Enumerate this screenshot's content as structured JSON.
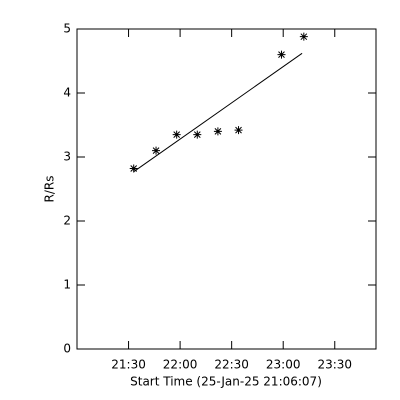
{
  "chart_data": {
    "type": "scatter",
    "x_label": "Start Time (25-Jan-25 21:06:07)",
    "y_label": "R/Rs",
    "x": [
      1293,
      1306,
      1318,
      1330,
      1342,
      1354,
      1379,
      1392
    ],
    "values": [
      2.82,
      3.1,
      3.35,
      3.35,
      3.4,
      3.42,
      4.6,
      4.88
    ],
    "fit": {
      "x": [
        1293,
        1391
      ],
      "values": [
        2.77,
        4.62
      ]
    },
    "color": "#000000",
    "xlim": [
      1260,
      1434
    ],
    "xticks": [
      {
        "value": 1290,
        "label": "21:30"
      },
      {
        "value": 1320,
        "label": "22:00"
      },
      {
        "value": 1350,
        "label": "22:30"
      },
      {
        "value": 1380,
        "label": "23:00"
      },
      {
        "value": 1410,
        "label": "23:30"
      }
    ],
    "ylim": [
      0,
      5
    ],
    "yticks": [
      0,
      1,
      2,
      3,
      4,
      5
    ]
  }
}
